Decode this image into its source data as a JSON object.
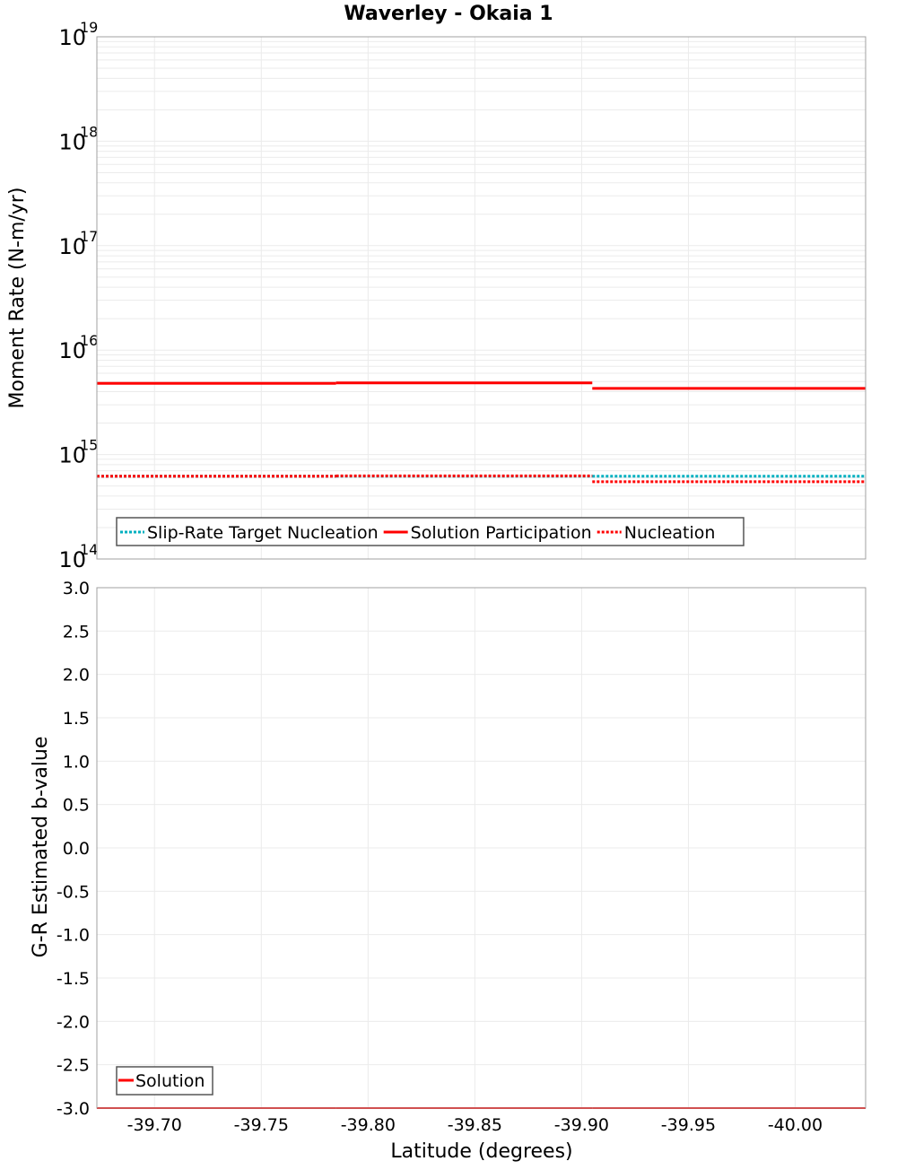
{
  "title": "Waverley - Okaia 1",
  "chart_data": [
    {
      "type": "line",
      "title": "Waverley - Okaia 1",
      "xlabel": "Latitude (degrees)",
      "ylabel": "Moment Rate (N-m/yr)",
      "yscale": "log",
      "ylim": [
        100000000000000.0,
        1e+19
      ],
      "xlim": [
        -39.673,
        -40.033
      ],
      "y_tick_labels": [
        {
          "base": "10",
          "exp": "14",
          "value": 100000000000000.0
        },
        {
          "base": "10",
          "exp": "15",
          "value": 1000000000000000.0
        },
        {
          "base": "10",
          "exp": "16",
          "value": 1e+16
        },
        {
          "base": "10",
          "exp": "17",
          "value": 1e+17
        },
        {
          "base": "10",
          "exp": "18",
          "value": 1e+18
        },
        {
          "base": "10",
          "exp": "19",
          "value": 1e+19
        }
      ],
      "grid": true,
      "legend_position": "lower-left",
      "series": [
        {
          "name": "Slip-Rate Target Nucleation",
          "color": "#00b0c0",
          "style": "dotted",
          "segments": [
            {
              "x0": -39.673,
              "x1": -39.785,
              "y": 620000000000000.0
            },
            {
              "x0": -39.785,
              "x1": -39.905,
              "y": 620000000000000.0
            },
            {
              "x0": -39.905,
              "x1": -40.033,
              "y": 620000000000000.0
            }
          ]
        },
        {
          "name": "Solution Participation",
          "color": "#ff0000",
          "style": "solid",
          "segments": [
            {
              "x0": -39.673,
              "x1": -39.785,
              "y": 4800000000000000.0
            },
            {
              "x0": -39.785,
              "x1": -39.905,
              "y": 4850000000000000.0
            },
            {
              "x0": -39.905,
              "x1": -40.033,
              "y": 4300000000000000.0
            }
          ]
        },
        {
          "name": "Nucleation",
          "color": "#ff0000",
          "style": "dotted",
          "segments": [
            {
              "x0": -39.673,
              "x1": -39.785,
              "y": 620000000000000.0
            },
            {
              "x0": -39.785,
              "x1": -39.905,
              "y": 625000000000000.0
            },
            {
              "x0": -39.905,
              "x1": -40.033,
              "y": 550000000000000.0
            }
          ]
        }
      ]
    },
    {
      "type": "line",
      "xlabel": "Latitude (degrees)",
      "ylabel": "G-R Estimated b-value",
      "ylim": [
        -3.0,
        3.0
      ],
      "xlim": [
        -39.673,
        -40.033
      ],
      "y_ticks": [
        3.0,
        2.5,
        2.0,
        1.5,
        1.0,
        0.5,
        0.0,
        -0.5,
        -1.0,
        -1.5,
        -2.0,
        -2.5,
        -3.0
      ],
      "y_tick_labels": [
        "3.0",
        "2.5",
        "2.0",
        "1.5",
        "1.0",
        "0.5",
        "0.0",
        "-0.5",
        "-1.0",
        "-1.5",
        "-2.0",
        "-2.5",
        "-3.0"
      ],
      "x_ticks": [
        -39.7,
        -39.75,
        -39.8,
        -39.85,
        -39.9,
        -39.95,
        -40.0
      ],
      "x_tick_labels": [
        "-39.70",
        "-39.75",
        "-39.80",
        "-39.85",
        "-39.90",
        "-39.95",
        "-40.00"
      ],
      "grid": true,
      "legend_position": "lower-left",
      "series": [
        {
          "name": "Solution",
          "color": "#ff0000",
          "style": "solid",
          "segments": [
            {
              "x0": -39.673,
              "x1": -39.785,
              "y": -3.0
            },
            {
              "x0": -39.785,
              "x1": -39.905,
              "y": -3.0
            },
            {
              "x0": -39.905,
              "x1": -40.033,
              "y": -3.0
            }
          ]
        }
      ]
    }
  ]
}
